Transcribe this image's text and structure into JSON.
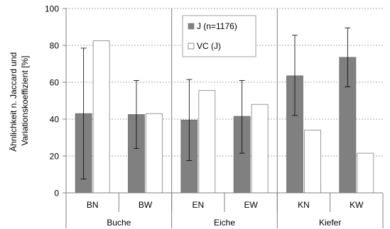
{
  "chart_data": {
    "type": "bar",
    "title": "",
    "ylabel_line1": "Ähnlichkeit n. Jaccard und",
    "ylabel_line2": "Variationskoeffizient [%]",
    "ylim": [
      0,
      100
    ],
    "yticks": [
      "0",
      "20",
      "40",
      "60",
      "80",
      "100"
    ],
    "ytick_values": [
      0,
      20,
      40,
      60,
      80,
      100
    ],
    "grid": true,
    "legend_position": "top-center",
    "categories": [
      "BN",
      "BW",
      "EN",
      "EW",
      "KN",
      "KW"
    ],
    "groups": [
      {
        "label": "Buche",
        "categories": [
          "BN",
          "BW"
        ]
      },
      {
        "label": "Eiche",
        "categories": [
          "EN",
          "EW"
        ]
      },
      {
        "label": "Kiefer",
        "categories": [
          "KN",
          "KW"
        ]
      }
    ],
    "series": [
      {
        "name": "J (n=1176)",
        "color": "#808080",
        "values": [
          43,
          42.5,
          39.5,
          41.5,
          63.5,
          73.5
        ],
        "error_low": [
          7.5,
          24,
          17.5,
          21.5,
          42,
          57.5
        ],
        "error_high": [
          78.5,
          61,
          61.5,
          61,
          85.5,
          89.5
        ]
      },
      {
        "name": "VC (J)",
        "color": "#ffffff",
        "values": [
          82.5,
          43,
          55.5,
          48,
          34,
          21.5
        ]
      }
    ]
  }
}
